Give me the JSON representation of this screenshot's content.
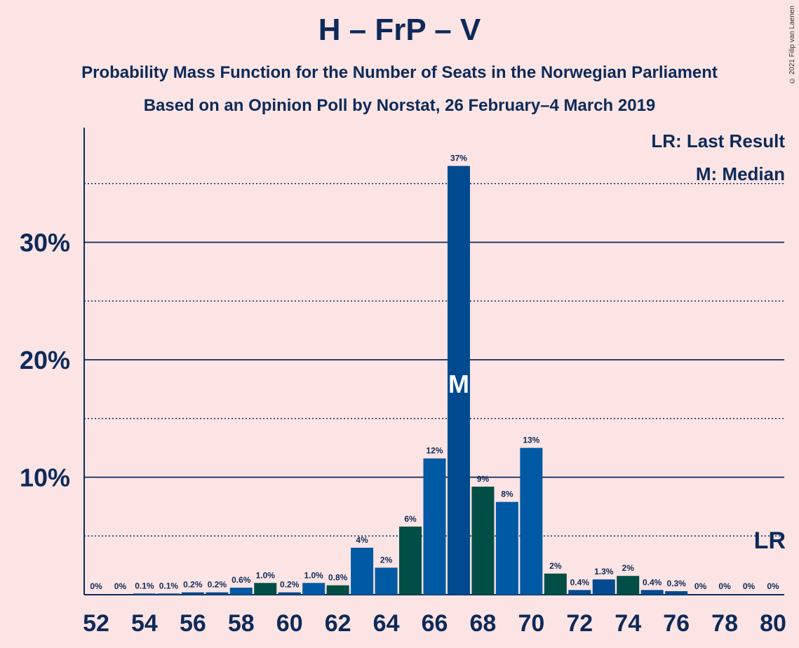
{
  "title": "H – FrP – V",
  "subtitle1": "Probability Mass Function for the Number of Seats in the Norwegian Parliament",
  "subtitle2": "Based on an Opinion Poll by Norstat, 26 February–4 March 2019",
  "copyright": "© 2021 Filip van Laenen",
  "legend": {
    "last_result": "LR: Last Result",
    "median": "M: Median"
  },
  "colors": {
    "blue": "#004a8f",
    "green": "#004e46",
    "lightblue": "#005aa3",
    "background": "#fce4e4",
    "text": "#0c2a5a"
  },
  "chart_data": {
    "type": "bar",
    "x": [
      52,
      53,
      54,
      55,
      56,
      57,
      58,
      59,
      60,
      61,
      62,
      63,
      64,
      65,
      66,
      67,
      68,
      69,
      70,
      71,
      72,
      73,
      74,
      75,
      76,
      77,
      78,
      79,
      80
    ],
    "values": [
      0,
      0,
      0.1,
      0.1,
      0.2,
      0.2,
      0.6,
      1.0,
      0.2,
      1.0,
      0.8,
      4,
      2.3,
      5.8,
      11.6,
      36.5,
      9.2,
      7.9,
      12.5,
      1.8,
      0.4,
      1.3,
      1.6,
      0.4,
      0.3,
      0,
      0,
      0,
      0
    ],
    "labels": [
      "0%",
      "0%",
      "0.1%",
      "0.1%",
      "0.2%",
      "0.2%",
      "0.6%",
      "1.0%",
      "0.2%",
      "1.0%",
      "0.8%",
      "4%",
      "2%",
      "6%",
      "12%",
      "37%",
      "9%",
      "8%",
      "13%",
      "2%",
      "0.4%",
      "1.3%",
      "2%",
      "0.4%",
      "0.3%",
      "0%",
      "0%",
      "0%",
      "0%"
    ],
    "xticks": [
      "52",
      "54",
      "56",
      "58",
      "60",
      "62",
      "64",
      "66",
      "68",
      "70",
      "72",
      "74",
      "76",
      "78",
      "80"
    ],
    "yticks": [
      "10%",
      "20%",
      "30%"
    ],
    "ylim": [
      0,
      39
    ],
    "median_x": 67,
    "median_label": "M",
    "last_result_x": 80,
    "last_result_label": "LR",
    "grid": true,
    "legend_position": "top-right"
  }
}
